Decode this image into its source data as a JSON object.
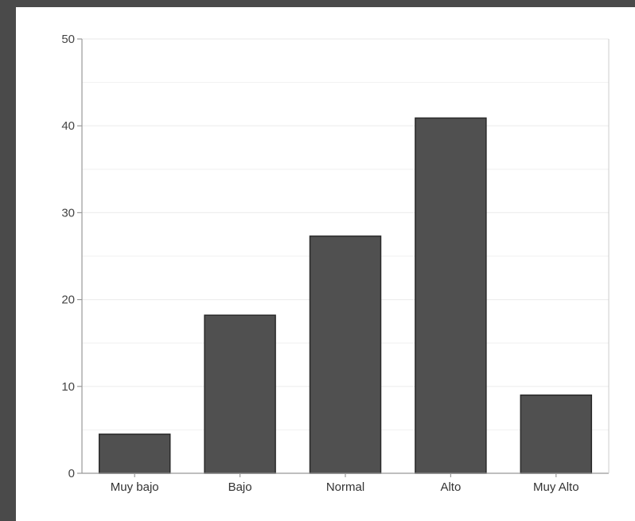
{
  "chart_data": {
    "type": "bar",
    "title": "",
    "xlabel": "",
    "ylabel": "",
    "categories": [
      "Muy bajo",
      "Bajo",
      "Normal",
      "Alto",
      "Muy Alto"
    ],
    "values": [
      4.5,
      18.2,
      27.3,
      40.9,
      9.0
    ],
    "ylim": [
      0,
      50
    ],
    "yticks": [
      0,
      10,
      20,
      30,
      40,
      50
    ],
    "grid": true,
    "legend": "none",
    "colors": {
      "bar_fill": "#505050",
      "bar_edge": "#2a2a2a",
      "frame_background": "#4a4a4a",
      "plot_background": "#ffffff",
      "grid": "#eeeeee",
      "axis": "#999999"
    }
  }
}
